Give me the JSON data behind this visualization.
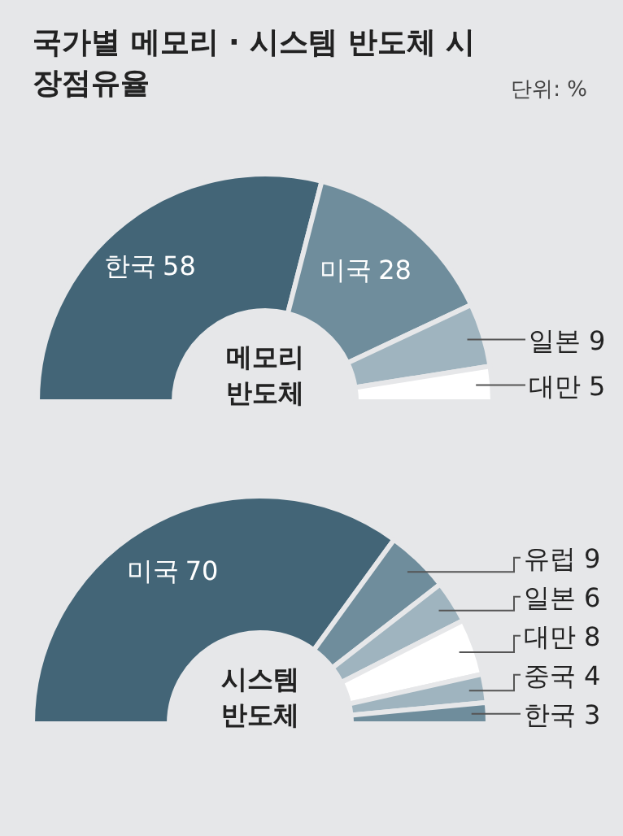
{
  "chart_data": [
    {
      "type": "donut",
      "title": "국가별 메모리 · 시스템 반도체 시장점유율",
      "annotations": [
        "단위: %",
        "메모리 반도체"
      ],
      "data_labels": true,
      "categories": [
        "한국",
        "미국",
        "일본",
        "대만"
      ],
      "values": [
        58,
        28,
        9,
        5
      ],
      "colors": [
        "#436577",
        "#6f8d9c",
        "#9fb4bf",
        "#ffffff"
      ]
    },
    {
      "type": "donut",
      "annotations": [
        "시스템 반도체"
      ],
      "data_labels": true,
      "categories": [
        "미국",
        "유럽",
        "일본",
        "대만",
        "중국",
        "한국"
      ],
      "values": [
        70,
        9,
        6,
        8,
        4,
        3
      ],
      "colors": [
        "#436577",
        "#6f8d9c",
        "#9fb4bf",
        "#ffffff",
        "#9fb4bf",
        "#6f8d9c"
      ]
    }
  ]
}
